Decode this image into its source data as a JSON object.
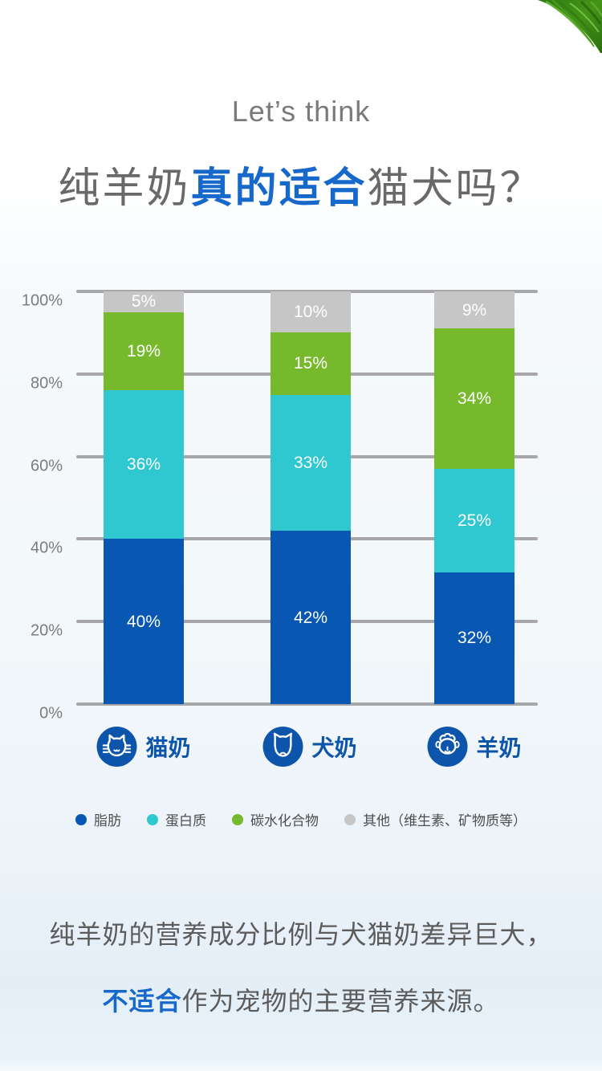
{
  "header": {
    "eyebrow": "Let’s think",
    "title_prefix": "纯羊奶",
    "title_highlight": "真的适合",
    "title_suffix": "猫犬吗？"
  },
  "chart_data": {
    "type": "bar",
    "stacked": true,
    "categories": [
      "猫奶",
      "犬奶",
      "羊奶"
    ],
    "category_keys": [
      "cat-milk",
      "dog-milk",
      "goat-milk"
    ],
    "category_icons": [
      "cat-icon",
      "dog-icon",
      "sheep-icon"
    ],
    "series": [
      {
        "key": "fat",
        "name": "脂肪",
        "color": "#0757b3",
        "values": [
          40,
          42,
          32
        ]
      },
      {
        "key": "protein",
        "name": "蛋白质",
        "color": "#2fc7d0",
        "values": [
          36,
          33,
          25
        ]
      },
      {
        "key": "carbohydrate",
        "name": "碳水化合物",
        "color": "#77b92d",
        "values": [
          19,
          15,
          34
        ]
      },
      {
        "key": "other",
        "name": "其他（维生素、矿物质等）",
        "color": "#c6c6c7",
        "values": [
          5,
          10,
          9
        ]
      }
    ],
    "value_suffix": "%",
    "y_ticks": [
      "0%",
      "20%",
      "40%",
      "60%",
      "80%",
      "100%"
    ],
    "ylim": [
      0,
      100
    ],
    "grid": true,
    "legend_position": "bottom"
  },
  "footer": {
    "line1": "纯羊奶的营养成分比例与犬猫奶差异巨大，",
    "line2_highlight": "不适合",
    "line2_rest": "作为宠物的主要营养来源。"
  },
  "colors": {
    "title_highlight": "#1668cb",
    "category_label_blue": "#0d55ab",
    "gridline": "#a7a7a9",
    "eyebrow_gray": "#7a7a7a",
    "footer_gray": "#5c5c5c"
  }
}
